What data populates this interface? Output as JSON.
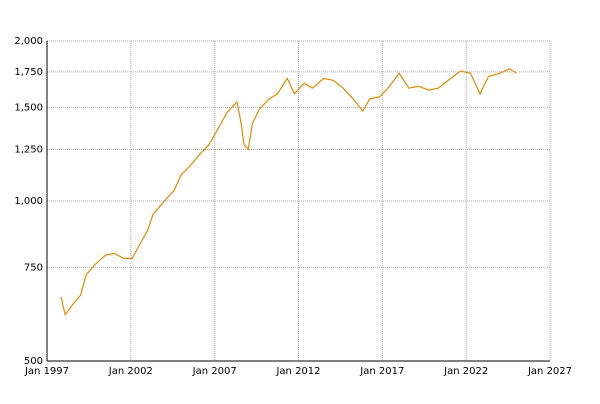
{
  "chart_data": {
    "type": "line",
    "log_y": true,
    "grid": true,
    "color": "#e08a00",
    "x": [
      "1997-11",
      "1998-02",
      "1998-07",
      "1999-01",
      "1999-05",
      "1999-11",
      "2000-07",
      "2001-01",
      "2001-08",
      "2002-02",
      "2002-07",
      "2003-01",
      "2003-05",
      "2004-01",
      "2004-08",
      "2005-01",
      "2005-08",
      "2006-02",
      "2006-09",
      "2007-04",
      "2007-10",
      "2008-05",
      "2008-08",
      "2008-10",
      "2009-01",
      "2009-04",
      "2009-09",
      "2010-04",
      "2010-10",
      "2011-05",
      "2011-10",
      "2012-05",
      "2012-11",
      "2013-07",
      "2014-02",
      "2014-09",
      "2015-04",
      "2015-11",
      "2016-04",
      "2016-11",
      "2017-05",
      "2018-01",
      "2018-08",
      "2019-03",
      "2019-10",
      "2020-05",
      "2021-02",
      "2021-09",
      "2022-04",
      "2022-11",
      "2023-05",
      "2024-01",
      "2024-08",
      "2025-01"
    ],
    "values": [
      660,
      611,
      637,
      665,
      726,
      758,
      791,
      797,
      780,
      780,
      825,
      880,
      945,
      1000,
      1047,
      1119,
      1169,
      1222,
      1277,
      1376,
      1470,
      1536,
      1398,
      1277,
      1250,
      1398,
      1489,
      1557,
      1591,
      1701,
      1591,
      1665,
      1630,
      1701,
      1686,
      1630,
      1557,
      1476,
      1557,
      1570,
      1630,
      1739,
      1630,
      1644,
      1617,
      1630,
      1701,
      1756,
      1739,
      1591,
      1716,
      1739,
      1773,
      1739
    ],
    "xlim": [
      "1997-01",
      "2027-01"
    ],
    "xticks": [
      {
        "value": "1997-01",
        "label": "Jan 1997"
      },
      {
        "value": "2002-01",
        "label": "Jan 2002"
      },
      {
        "value": "2007-01",
        "label": "Jan 2007"
      },
      {
        "value": "2012-01",
        "label": "Jan 2012"
      },
      {
        "value": "2017-01",
        "label": "Jan 2017"
      },
      {
        "value": "2022-01",
        "label": "Jan 2022"
      },
      {
        "value": "2027-01",
        "label": "Jan 2027"
      }
    ],
    "ylim": [
      500,
      2000
    ],
    "yticks": [
      500,
      750,
      {
        "value": 1000,
        "label": "1,000"
      },
      {
        "value": 1250,
        "label": "1,250"
      },
      {
        "value": 1500,
        "label": "1,500"
      },
      {
        "value": 1750,
        "label": "1,750"
      },
      {
        "value": 2000,
        "label": "2,000"
      }
    ]
  }
}
